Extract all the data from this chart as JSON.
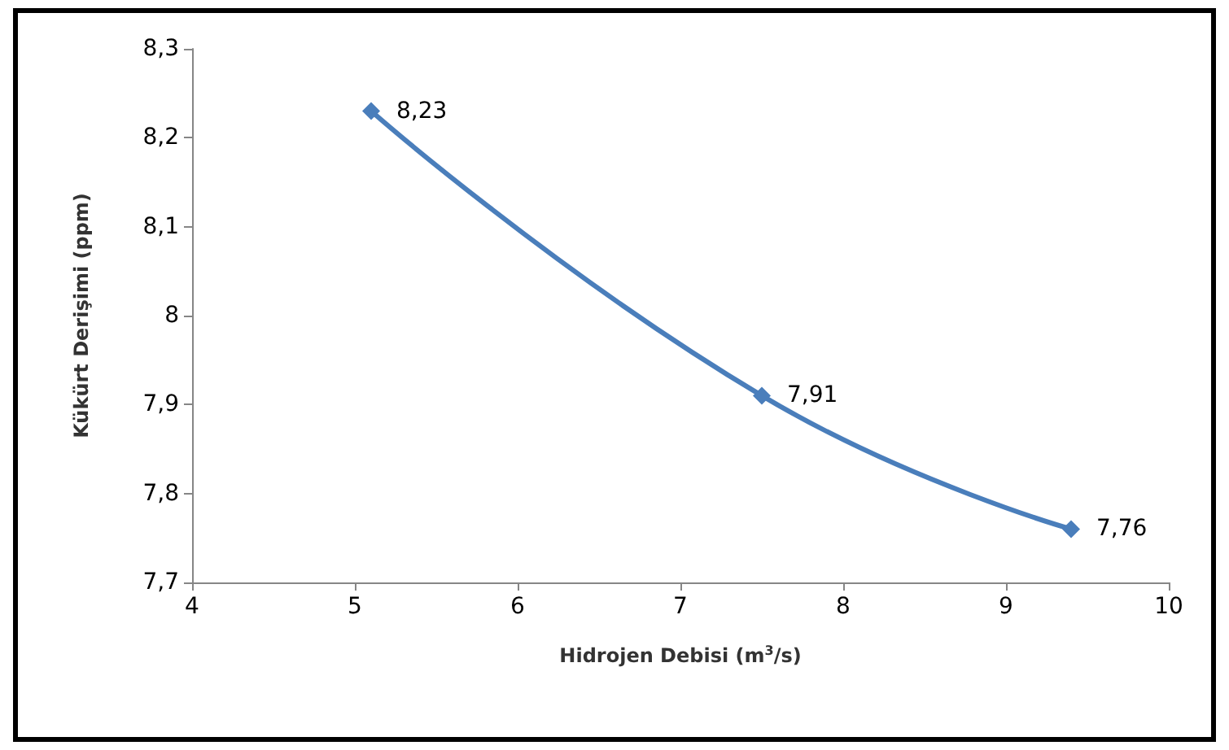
{
  "chart_data": {
    "type": "line",
    "xlabel": "Hidrojen Debisi (m$^{3}$/s)",
    "ylabel": "Kükürt Derişimi (ppm)",
    "x": [
      5.1,
      7.5,
      9.4
    ],
    "series": [
      {
        "color": "#4a7ebb",
        "values": [
          8.23,
          7.91,
          7.76
        ],
        "value_labels": [
          "8,23",
          "7,91",
          "7,76"
        ]
      }
    ],
    "xlim": [
      4,
      10
    ],
    "xticks": [
      4,
      5,
      6,
      7,
      8,
      9,
      10
    ],
    "ylim": [
      7.7,
      8.3
    ],
    "yticks": [
      {
        "value": 7.7,
        "label": "7,7"
      },
      {
        "value": 7.8,
        "label": "7,8"
      },
      {
        "value": 7.9,
        "label": "7,9"
      },
      {
        "value": 8,
        "label": "8"
      },
      {
        "value": 8.1,
        "label": "8,1"
      },
      {
        "value": 8.2,
        "label": "8,2"
      },
      {
        "value": 8.3,
        "label": "8,3"
      }
    ],
    "marker": "diamond",
    "line_style": "solid"
  }
}
